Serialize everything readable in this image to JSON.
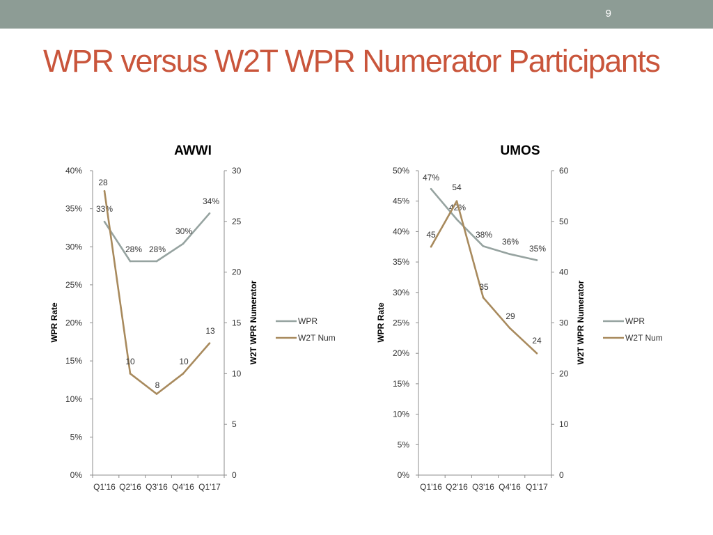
{
  "slide": {
    "number": "9",
    "title": "WPR versus W2T WPR Numerator Participants"
  },
  "colors": {
    "header_bar": "#8d9c95",
    "title": "#c9553b",
    "wpr_line": "#96a3a0",
    "w2t_line": "#a88a5d"
  },
  "chart_data": [
    {
      "type": "line",
      "title": "AWWI",
      "categories": [
        "Q1'16",
        "Q2'16",
        "Q3'16",
        "Q4'16",
        "Q1'17"
      ],
      "y_left": {
        "label": "WPR Rate",
        "ticks": [
          "0%",
          "5%",
          "10%",
          "15%",
          "20%",
          "25%",
          "30%",
          "35%",
          "40%"
        ],
        "ylim": [
          0,
          40
        ]
      },
      "y_right": {
        "label": "W2T WPR Numerator",
        "ticks": [
          "0",
          "5",
          "10",
          "15",
          "20",
          "25",
          "30"
        ],
        "ylim": [
          0,
          30
        ]
      },
      "series": [
        {
          "name": "WPR",
          "axis": "left",
          "values": [
            33.3,
            28.1,
            28.1,
            30.4,
            34.4
          ],
          "labels": [
            "33%",
            "28%",
            "28%",
            "30%",
            "34%"
          ],
          "color": "#96a3a0"
        },
        {
          "name": "W2T Num",
          "axis": "right",
          "values": [
            28,
            10,
            8,
            10,
            13
          ],
          "labels": [
            "28",
            "10",
            "8",
            "10",
            "13"
          ],
          "color": "#a88a5d"
        }
      ],
      "legend": "right",
      "grid": false
    },
    {
      "type": "line",
      "title": "UMOS",
      "categories": [
        "Q1'16",
        "Q2'16",
        "Q3'16",
        "Q4'16",
        "Q1'17"
      ],
      "y_left": {
        "label": "WPR Rate",
        "ticks": [
          "0%",
          "5%",
          "10%",
          "15%",
          "20%",
          "25%",
          "30%",
          "35%",
          "40%",
          "45%",
          "50%"
        ],
        "ylim": [
          0,
          50
        ]
      },
      "y_right": {
        "label": "W2T WPR Numerator",
        "ticks": [
          "0",
          "10",
          "20",
          "30",
          "40",
          "50",
          "60"
        ],
        "ylim": [
          0,
          60
        ]
      },
      "series": [
        {
          "name": "WPR",
          "axis": "left",
          "values": [
            47,
            42,
            37.6,
            36.3,
            35.3
          ],
          "labels": [
            "47%",
            "42%",
            "38%",
            "36%",
            "35%"
          ],
          "color": "#96a3a0"
        },
        {
          "name": "W2T Num",
          "axis": "right",
          "values": [
            45,
            54,
            35,
            29,
            24
          ],
          "labels": [
            "45",
            "54",
            "35",
            "29",
            "24"
          ],
          "color": "#a88a5d"
        }
      ],
      "legend": "right",
      "grid": false
    }
  ]
}
